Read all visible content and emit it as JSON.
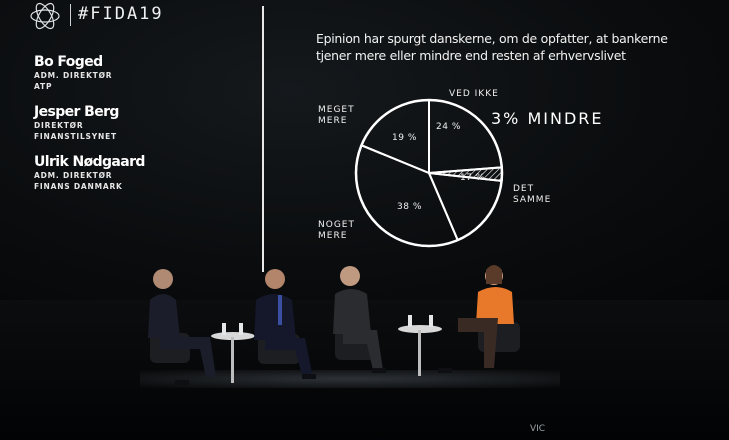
{
  "event": {
    "hashtag": "#FIDA19",
    "logo_icon": "fida-logo-icon"
  },
  "speakers": [
    {
      "name": "Bo Foged",
      "role_lines": [
        "ADM. DIREKTØR",
        "ATP"
      ]
    },
    {
      "name": "Jesper Berg",
      "role_lines": [
        "DIREKTØR",
        "FINANSTILSYNET"
      ]
    },
    {
      "name": "Ulrik Nødgaard",
      "role_lines": [
        "ADM. DIREKTØR",
        "FINANS DANMARK"
      ]
    }
  ],
  "chart_data": {
    "type": "pie",
    "title_lines": [
      "Epinion har spurgt danskerne, om de opfatter, at bankerne",
      "tjener mere eller mindre end resten af erhvervslivet"
    ],
    "slices": [
      {
        "label": "VED IKKE",
        "label_lines": [
          "VED IKKE"
        ],
        "value": 24,
        "value_label": "24 %"
      },
      {
        "label": "MINDRE",
        "label_lines": [
          "3% MINDRE"
        ],
        "value": 3,
        "value_label": ""
      },
      {
        "label": "DET SAMME",
        "label_lines": [
          "DET",
          "SAMME"
        ],
        "value": 17,
        "value_label": "17 %"
      },
      {
        "label": "NOGET MERE",
        "label_lines": [
          "NOGET",
          "MERE"
        ],
        "value": 38,
        "value_label": "38 %"
      },
      {
        "label": "MEGET MERE",
        "label_lines": [
          "MEGET",
          "MERE"
        ],
        "value": 19,
        "value_label": "19 %"
      }
    ],
    "colors": {
      "background": "#0a0c0e",
      "stroke": "#ffffff",
      "hatch": "#ffffff"
    }
  },
  "stage": {
    "panelists": [
      {
        "desc": "man-dark-suit",
        "suit": "#1b1e2a"
      },
      {
        "desc": "man-dark-suit-tie",
        "suit": "#15182a"
      },
      {
        "desc": "man-grey-suit",
        "suit": "#2a2c30"
      },
      {
        "desc": "woman-orange-top",
        "top": "#e8782a",
        "trousers": "#3a2a24"
      }
    ],
    "accent_overlay": "VIC"
  }
}
